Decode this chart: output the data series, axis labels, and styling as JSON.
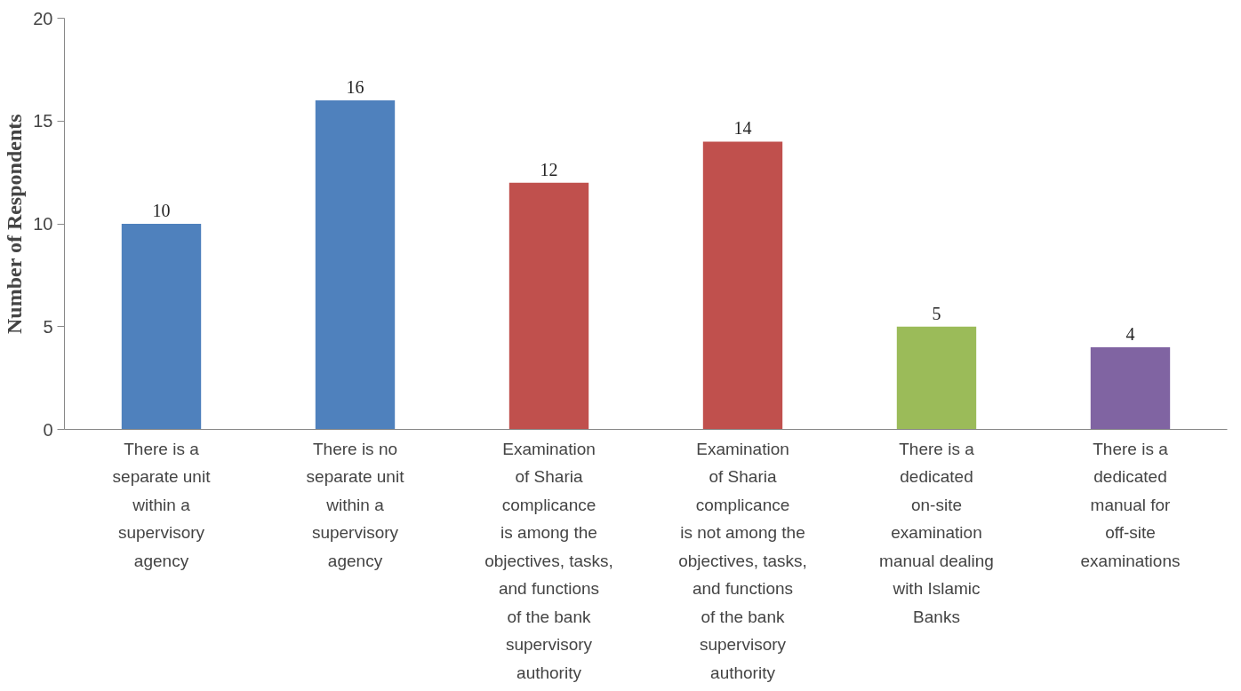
{
  "chart_data": {
    "type": "bar",
    "ylabel": "Number of Respondents",
    "categories": [
      "There is a\nseparate unit\nwithin a\nsupervisory\nagency",
      "There is no\nseparate unit\nwithin a\nsupervisory\nagency",
      "Examination\nof Sharia\ncomplicance\nis among the\nobjectives, tasks,\nand functions\nof the bank\nsupervisory\nauthority",
      "Examination\nof Sharia\ncomplicance\nis not among the\nobjectives, tasks,\nand functions\nof the bank\nsupervisory\nauthority",
      "There is a\ndedicated\non-site\nexamination\nmanual dealing\nwith Islamic\nBanks",
      "There is a\ndedicated\nmanual for\noff-site\nexaminations"
    ],
    "values": [
      10,
      16,
      12,
      14,
      5,
      4
    ],
    "colors": [
      "#4f81bd",
      "#4f81bd",
      "#c0504d",
      "#c0504d",
      "#9bbb59",
      "#8064a2"
    ],
    "ylim": [
      0,
      20
    ],
    "yticks": [
      0,
      5,
      10,
      15,
      20
    ],
    "data_labels": true
  }
}
